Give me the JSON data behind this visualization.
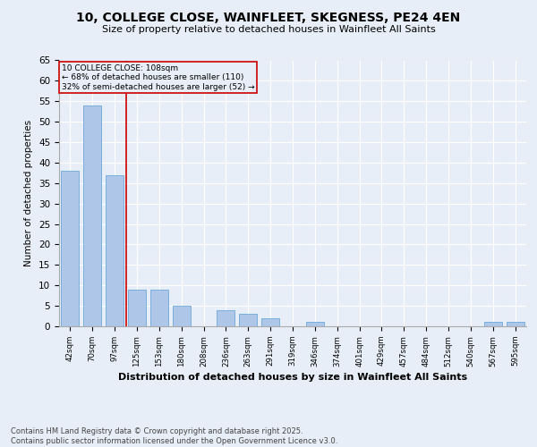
{
  "title": "10, COLLEGE CLOSE, WAINFLEET, SKEGNESS, PE24 4EN",
  "subtitle": "Size of property relative to detached houses in Wainfleet All Saints",
  "xlabel": "Distribution of detached houses by size in Wainfleet All Saints",
  "ylabel": "Number of detached properties",
  "footer": "Contains HM Land Registry data © Crown copyright and database right 2025.\nContains public sector information licensed under the Open Government Licence v3.0.",
  "categories": [
    "42sqm",
    "70sqm",
    "97sqm",
    "125sqm",
    "153sqm",
    "180sqm",
    "208sqm",
    "236sqm",
    "263sqm",
    "291sqm",
    "319sqm",
    "346sqm",
    "374sqm",
    "401sqm",
    "429sqm",
    "457sqm",
    "484sqm",
    "512sqm",
    "540sqm",
    "567sqm",
    "595sqm"
  ],
  "values": [
    38,
    54,
    37,
    9,
    9,
    5,
    0,
    4,
    3,
    2,
    0,
    1,
    0,
    0,
    0,
    0,
    0,
    0,
    0,
    1,
    1
  ],
  "bar_color": "#aec6e8",
  "bar_edge_color": "#5a9fd4",
  "vline_x": 2.5,
  "vline_color": "#cc0000",
  "annotation_title": "10 COLLEGE CLOSE: 108sqm",
  "annotation_line1": "← 68% of detached houses are smaller (110)",
  "annotation_line2": "32% of semi-detached houses are larger (52) →",
  "annotation_box_color": "#cc0000",
  "ylim": [
    0,
    65
  ],
  "yticks": [
    0,
    5,
    10,
    15,
    20,
    25,
    30,
    35,
    40,
    45,
    50,
    55,
    60,
    65
  ],
  "bg_color": "#e8eef7",
  "plot_bg_color": "#e8eef7",
  "grid_color": "#ffffff"
}
